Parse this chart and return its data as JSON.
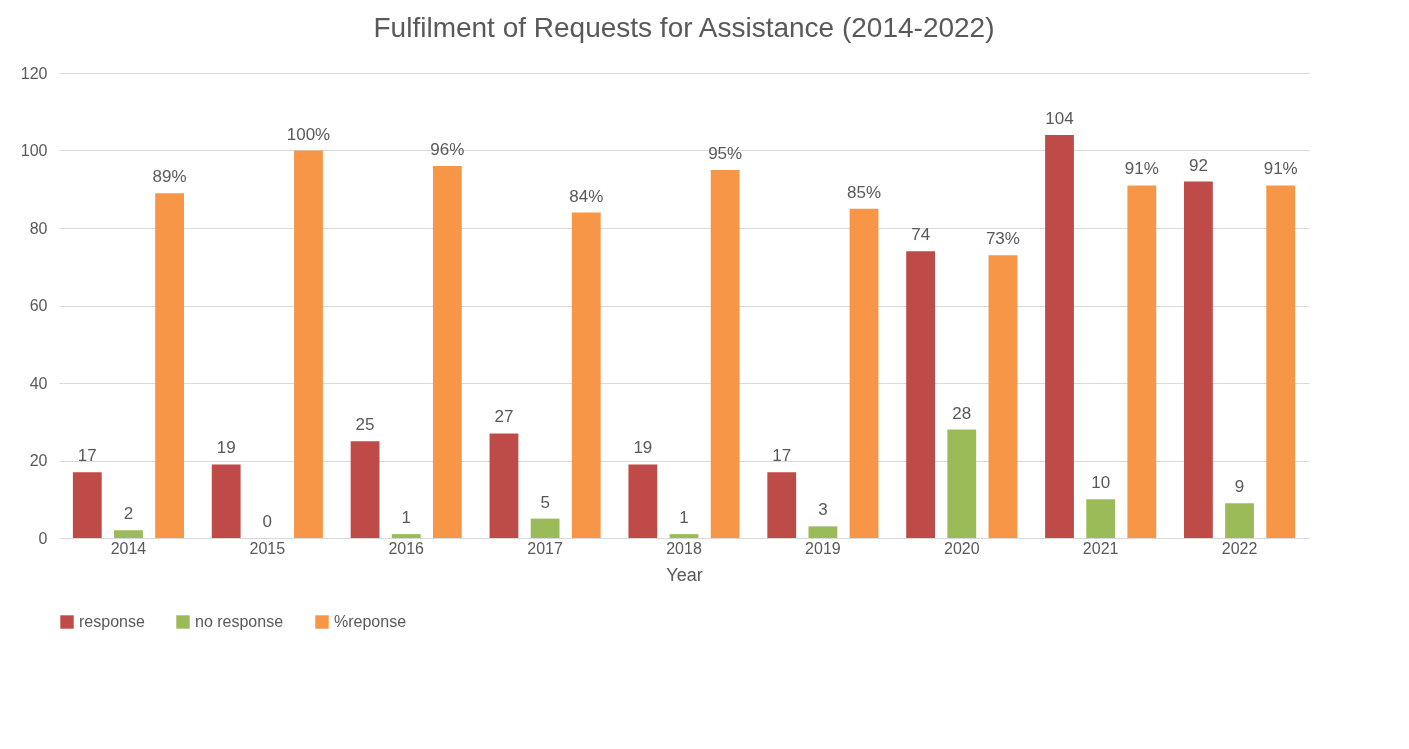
{
  "chart_data": {
    "type": "bar",
    "title": "Fulfilment of Requests for Assistance (2014-2022)",
    "xlabel": "Year",
    "categories": [
      "2014",
      "2015",
      "2016",
      "2017",
      "2018",
      "2019",
      "2020",
      "2021",
      "2022"
    ],
    "series": [
      {
        "name": "response",
        "color": "#be4b48",
        "values": [
          17,
          19,
          25,
          27,
          19,
          17,
          74,
          104,
          92
        ],
        "value_labels": [
          "17",
          "19",
          "25",
          "27",
          "19",
          "17",
          "74",
          "104",
          "92"
        ]
      },
      {
        "name": "no response",
        "color": "#9bbb59",
        "values": [
          2,
          0,
          1,
          5,
          1,
          3,
          28,
          10,
          9
        ],
        "value_labels": [
          "2",
          "0",
          "1",
          "5",
          "1",
          "3",
          "28",
          "10",
          "9"
        ]
      },
      {
        "name": "%reponse",
        "color": "#f79646",
        "values": [
          89,
          100,
          96,
          84,
          95,
          85,
          73,
          91,
          91
        ],
        "value_labels": [
          "89%",
          "100%",
          "96%",
          "84%",
          "95%",
          "85%",
          "73%",
          "91%",
          "91%"
        ]
      }
    ],
    "ylim": [
      0,
      120
    ],
    "yticks": [
      0,
      20,
      40,
      60,
      80,
      100,
      120
    ],
    "grid": "y",
    "legend": "bottom"
  }
}
